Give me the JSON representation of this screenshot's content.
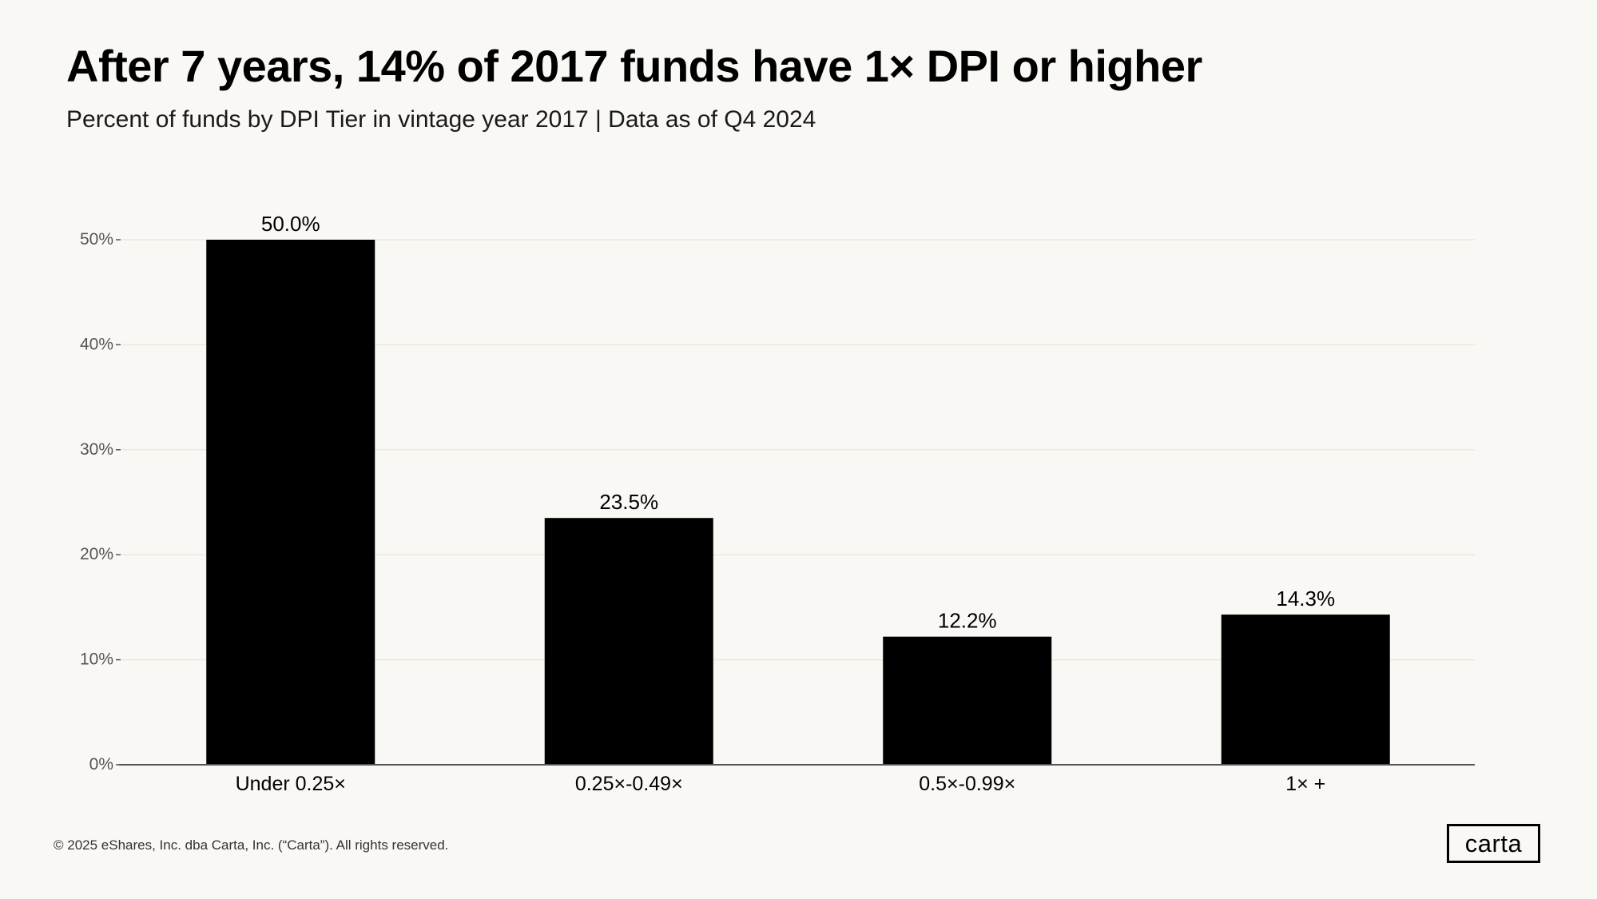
{
  "header": {
    "title": "After 7 years, 14% of 2017 funds have 1× DPI or higher",
    "subtitle": "Percent of funds by DPI Tier in vintage year 2017 | Data as of Q4 2024"
  },
  "chart_data": {
    "type": "bar",
    "title": "After 7 years, 14% of 2017 funds have 1× DPI or higher",
    "subtitle": "Percent of funds by DPI Tier in vintage year 2017 | Data as of Q4 2024",
    "categories": [
      "Under 0.25×",
      "0.25×-0.49×",
      "0.5×-0.99×",
      "1× +"
    ],
    "values": [
      50.0,
      23.5,
      12.2,
      14.3
    ],
    "data_labels": [
      "50.0%",
      "23.5%",
      "12.2%",
      "14.3%"
    ],
    "xlabel": "",
    "ylabel": "",
    "ylim": [
      0,
      50
    ],
    "yticks": [
      0,
      10,
      20,
      30,
      40,
      50
    ],
    "ytick_labels": [
      "0%",
      "10%",
      "20%",
      "30%",
      "40%",
      "50%"
    ],
    "grid": true,
    "bar_color": "#000000",
    "grid_color": "#ebe8e2",
    "axis_color": "#555555"
  },
  "footer": {
    "copyright": "© 2025 eShares, Inc. dba Carta, Inc. (“Carta”). All rights reserved.",
    "logo_text": "carta"
  }
}
